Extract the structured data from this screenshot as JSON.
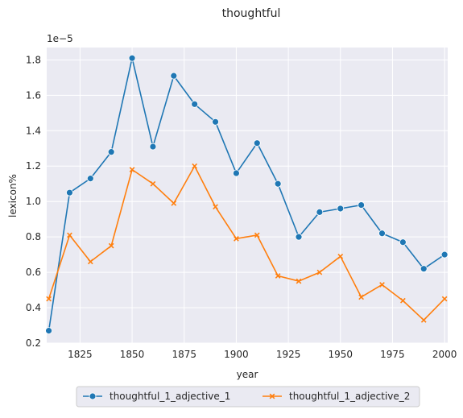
{
  "chart_data": {
    "type": "line",
    "title": "thoughtful",
    "xlabel": "year",
    "ylabel": "lexicon%",
    "y_scale_label": "1e−5",
    "x": [
      1810,
      1820,
      1830,
      1840,
      1850,
      1860,
      1870,
      1880,
      1890,
      1900,
      1910,
      1920,
      1930,
      1940,
      1950,
      1960,
      1970,
      1980,
      1990,
      2000
    ],
    "series": [
      {
        "name": "thoughtful_1_adjective_1",
        "color": "#1f77b4",
        "marker": "circle",
        "values": [
          0.27,
          1.05,
          1.13,
          1.28,
          1.81,
          1.31,
          1.71,
          1.55,
          1.45,
          1.16,
          1.33,
          1.1,
          0.8,
          0.94,
          0.96,
          0.98,
          0.82,
          0.77,
          0.62,
          0.7
        ]
      },
      {
        "name": "thoughtful_1_adjective_2",
        "color": "#ff7f0e",
        "marker": "x",
        "values": [
          0.45,
          0.81,
          0.66,
          0.75,
          1.18,
          1.1,
          0.99,
          1.2,
          0.97,
          0.79,
          0.81,
          0.58,
          0.55,
          0.6,
          0.69,
          0.46,
          0.53,
          0.44,
          0.33,
          0.45
        ]
      }
    ],
    "xticks": [
      1825,
      1850,
      1875,
      1900,
      1925,
      1950,
      1975,
      2000
    ],
    "xtick_labels": [
      "1825",
      "1850",
      "1875",
      "1900",
      "1925",
      "1950",
      "1975",
      "2000"
    ],
    "yticks": [
      0.2,
      0.4,
      0.6,
      0.8,
      1.0,
      1.2,
      1.4,
      1.6,
      1.8
    ],
    "ytick_labels": [
      "0.2",
      "0.4",
      "0.6",
      "0.8",
      "1.0",
      "1.2",
      "1.4",
      "1.6",
      "1.8"
    ],
    "xlim": [
      1809,
      2001.5
    ],
    "ylim": [
      0.2,
      1.87
    ],
    "grid": true,
    "legend_position": "below"
  }
}
